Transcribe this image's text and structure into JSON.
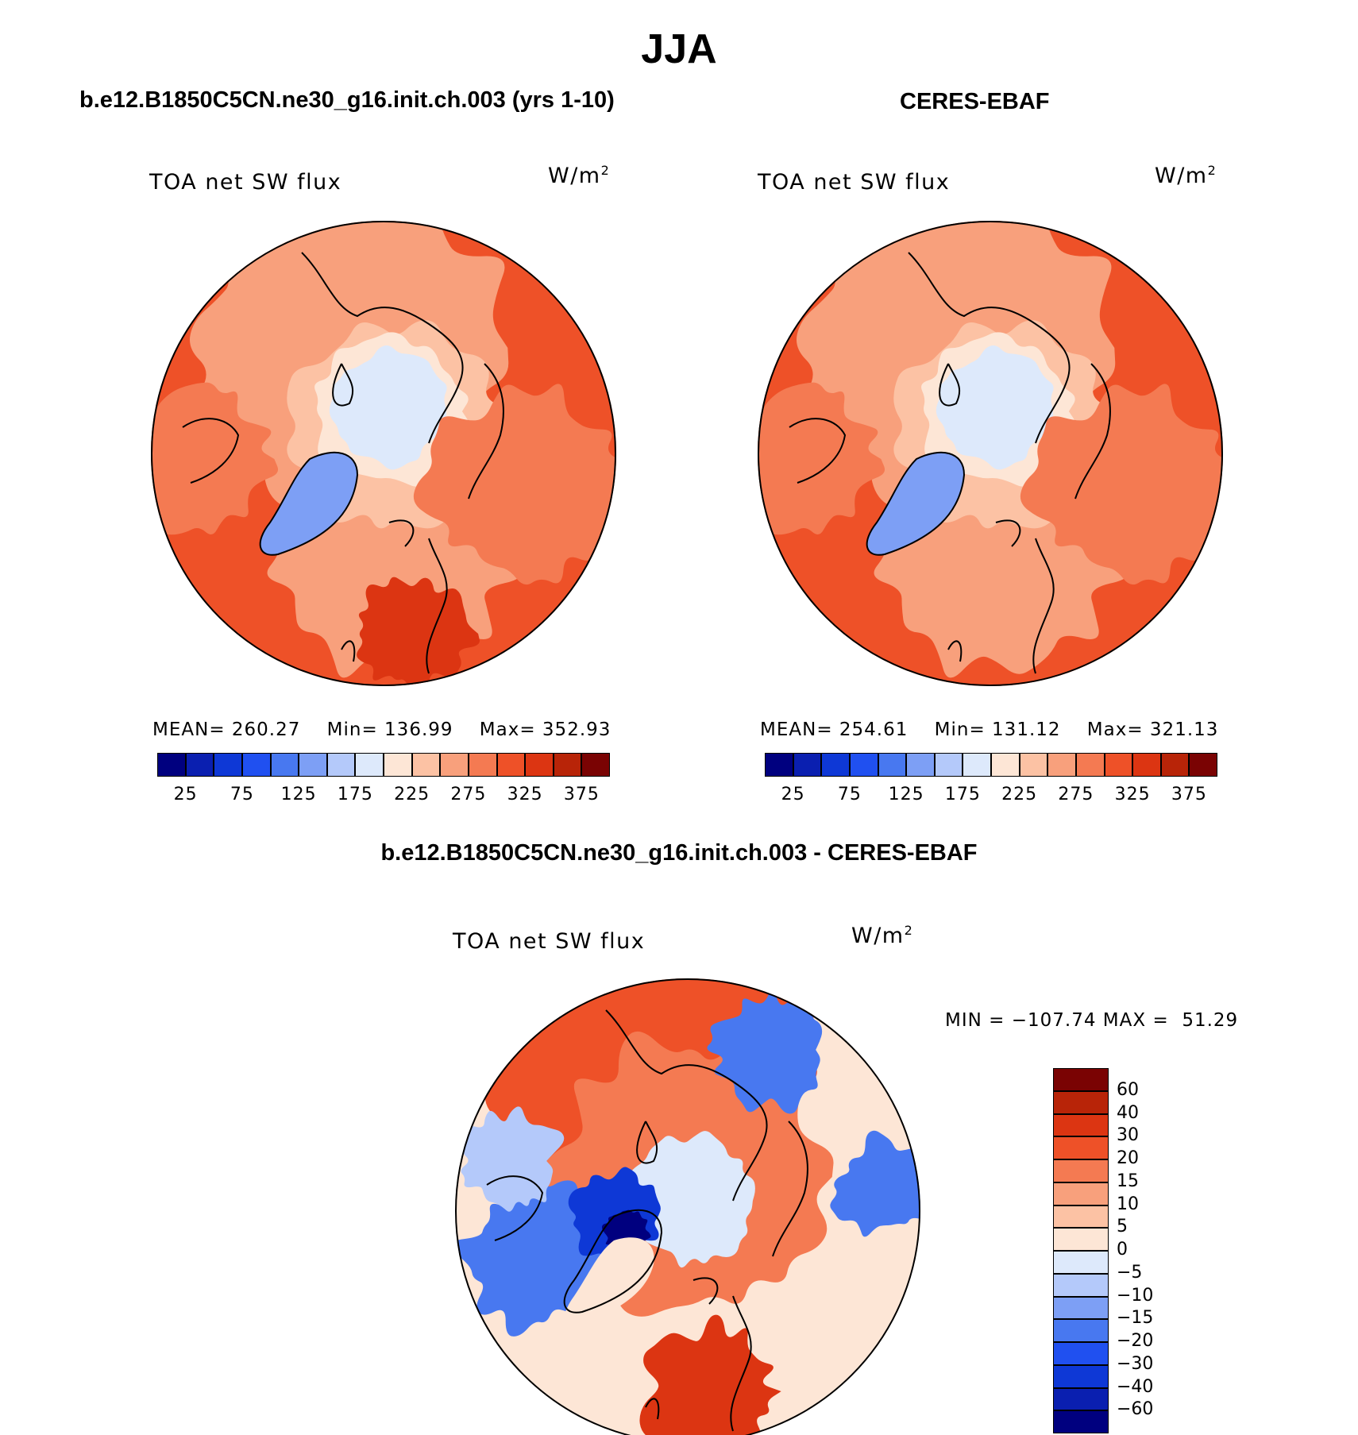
{
  "title": "JJA",
  "panels": [
    {
      "id": "model",
      "title": "b.e12.B1850C5CN.ne30_g16.init.ch.003 (yrs 1-10)",
      "variable": "TOA net SW flux",
      "units": "W/m",
      "units_exp": "2",
      "stats": {
        "mean_label": "MEAN=",
        "mean": "260.27",
        "min_label": "Min=",
        "min": "136.99",
        "max_label": "Max=",
        "max": "352.93"
      }
    },
    {
      "id": "obs",
      "title": "CERES-EBAF",
      "variable": "TOA net SW flux",
      "units": "W/m",
      "units_exp": "2",
      "stats": {
        "mean_label": "MEAN=",
        "mean": "254.61",
        "min_label": "Min=",
        "min": "131.12",
        "max_label": "Max=",
        "max": "321.13"
      }
    },
    {
      "id": "diff",
      "title": "b.e12.B1850C5CN.ne30_g16.init.ch.003 - CERES-EBAF",
      "variable": "TOA net SW flux",
      "units": "W/m",
      "units_exp": "2",
      "stats": {
        "min_label": "MIN =",
        "min": "−107.74",
        "max_label": "MAX =",
        "max": "51.29"
      }
    }
  ],
  "colorbar_abs": {
    "colors": [
      "#00007f",
      "#0a1fb0",
      "#0e38d6",
      "#2050f0",
      "#4878f0",
      "#7d9ff5",
      "#b4c9fa",
      "#dde9fb",
      "#fde6d6",
      "#fcc2a4",
      "#f8a07c",
      "#f47a52",
      "#ee5128",
      "#dc3512",
      "#b82408",
      "#7a0303"
    ],
    "tick_labels": [
      "25",
      "75",
      "125",
      "175",
      "225",
      "275",
      "325",
      "375"
    ]
  },
  "colorbar_diff": {
    "colors": [
      "#7a0303",
      "#b82408",
      "#dc3512",
      "#ee5128",
      "#f47a52",
      "#f8a07c",
      "#fcc2a4",
      "#fde6d6",
      "#dde9fb",
      "#b4c9fa",
      "#7d9ff5",
      "#4878f0",
      "#2050f0",
      "#0e38d6",
      "#0a1fb0",
      "#00007f"
    ],
    "tick_labels": [
      "60",
      "40",
      "30",
      "20",
      "15",
      "10",
      "5",
      "0",
      "−5",
      "−10",
      "−15",
      "−20",
      "−30",
      "−40",
      "−60"
    ]
  },
  "maps": {
    "projection": "north polar stereographic",
    "model_fill": [
      "#ee5128",
      "#f47a52",
      "#f8a07c",
      "#fcc2a4",
      "#fde6d6",
      "#dde9fb",
      "#7d9ff5",
      "#dc3512"
    ],
    "obs_fill": [
      "#ee5128",
      "#f47a52",
      "#f8a07c",
      "#fcc2a4",
      "#fde6d6",
      "#dde9fb",
      "#7d9ff5",
      "#dc3512"
    ],
    "diff_fill": [
      "#fde6d6",
      "#f47a52",
      "#ee5128",
      "#fcc2a4",
      "#dde9fb",
      "#4878f0",
      "#0e38d6",
      "#00007f",
      "#b4c9fa",
      "#dc3512"
    ]
  }
}
